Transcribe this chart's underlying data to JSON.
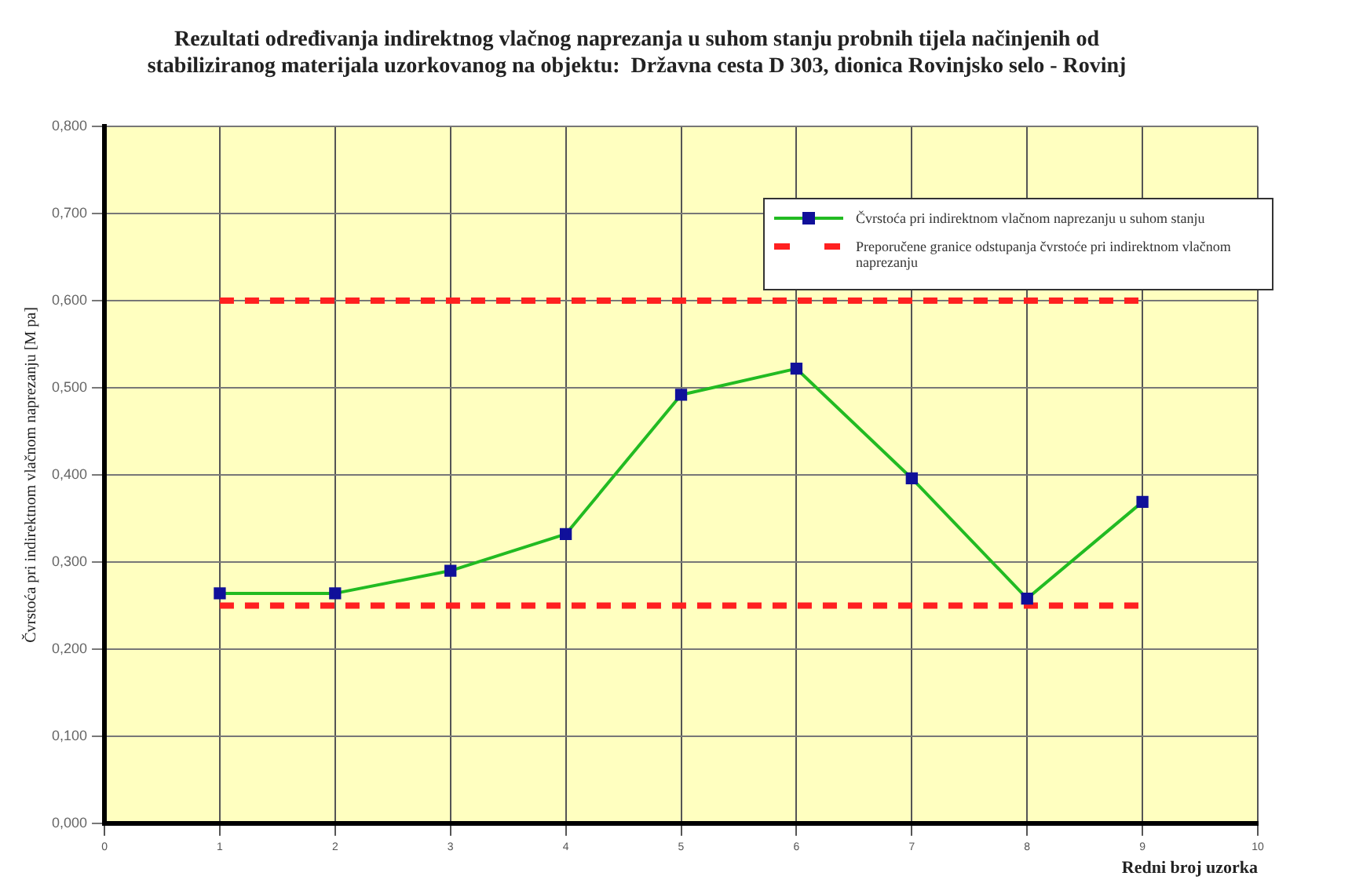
{
  "chart_data": {
    "type": "line",
    "title": [
      "Rezultati određivanja indirektnog vlačnog naprezanja u suhom stanju probnih tijela načinjenih od",
      "stabiliziranog materijala uzorkovanog na objektu:  Državna cesta D 303, dionica Rovinjsko selo - Rovinj"
    ],
    "xlabel": "Redni broj uzorka",
    "ylabel": "Čvrstoća pri indirektnom vlačnom naprezanju [M pa]",
    "series": [
      {
        "name": "Čvrstoća pri indirektnom vlačnom naprezanju u suhom stanju",
        "color": "#22bb22",
        "x": [
          1,
          2,
          3,
          4,
          5,
          6,
          7,
          8,
          9
        ],
        "values": [
          0.264,
          0.264,
          0.29,
          0.332,
          0.492,
          0.522,
          0.396,
          0.258,
          0.369
        ],
        "marker": "square",
        "line_style": "solid"
      },
      {
        "name": "Preporučene granice odstupanja čvrstoće pri indirektnom vlačnom naprezanju",
        "color": "#ff2020",
        "x": [
          1,
          9
        ],
        "values": [
          0.6,
          0.6
        ],
        "marker": "none",
        "line_style": "dashed"
      },
      {
        "color": "#ff2020",
        "x": [
          1,
          9
        ],
        "values": [
          0.25,
          0.25
        ],
        "marker": "none",
        "line_style": "dashed"
      }
    ],
    "xlim": [
      0,
      10
    ],
    "xticks": [
      0,
      1,
      2,
      3,
      4,
      5,
      6,
      7,
      8,
      9,
      10
    ],
    "ylim": [
      0,
      0.8
    ],
    "yticks": [
      {
        "value": 0,
        "label": "0,000"
      },
      {
        "value": 0.1,
        "label": "0,100"
      },
      {
        "value": 0.2,
        "label": "0,200"
      },
      {
        "value": 0.3,
        "label": "0,300"
      },
      {
        "value": 0.4,
        "label": "0,400"
      },
      {
        "value": 0.5,
        "label": "0,500"
      },
      {
        "value": 0.6,
        "label": "0,600"
      },
      {
        "value": 0.7,
        "label": "0,700"
      },
      {
        "value": 0.8,
        "label": "0,800"
      }
    ],
    "grid": true,
    "legend": "top right"
  }
}
